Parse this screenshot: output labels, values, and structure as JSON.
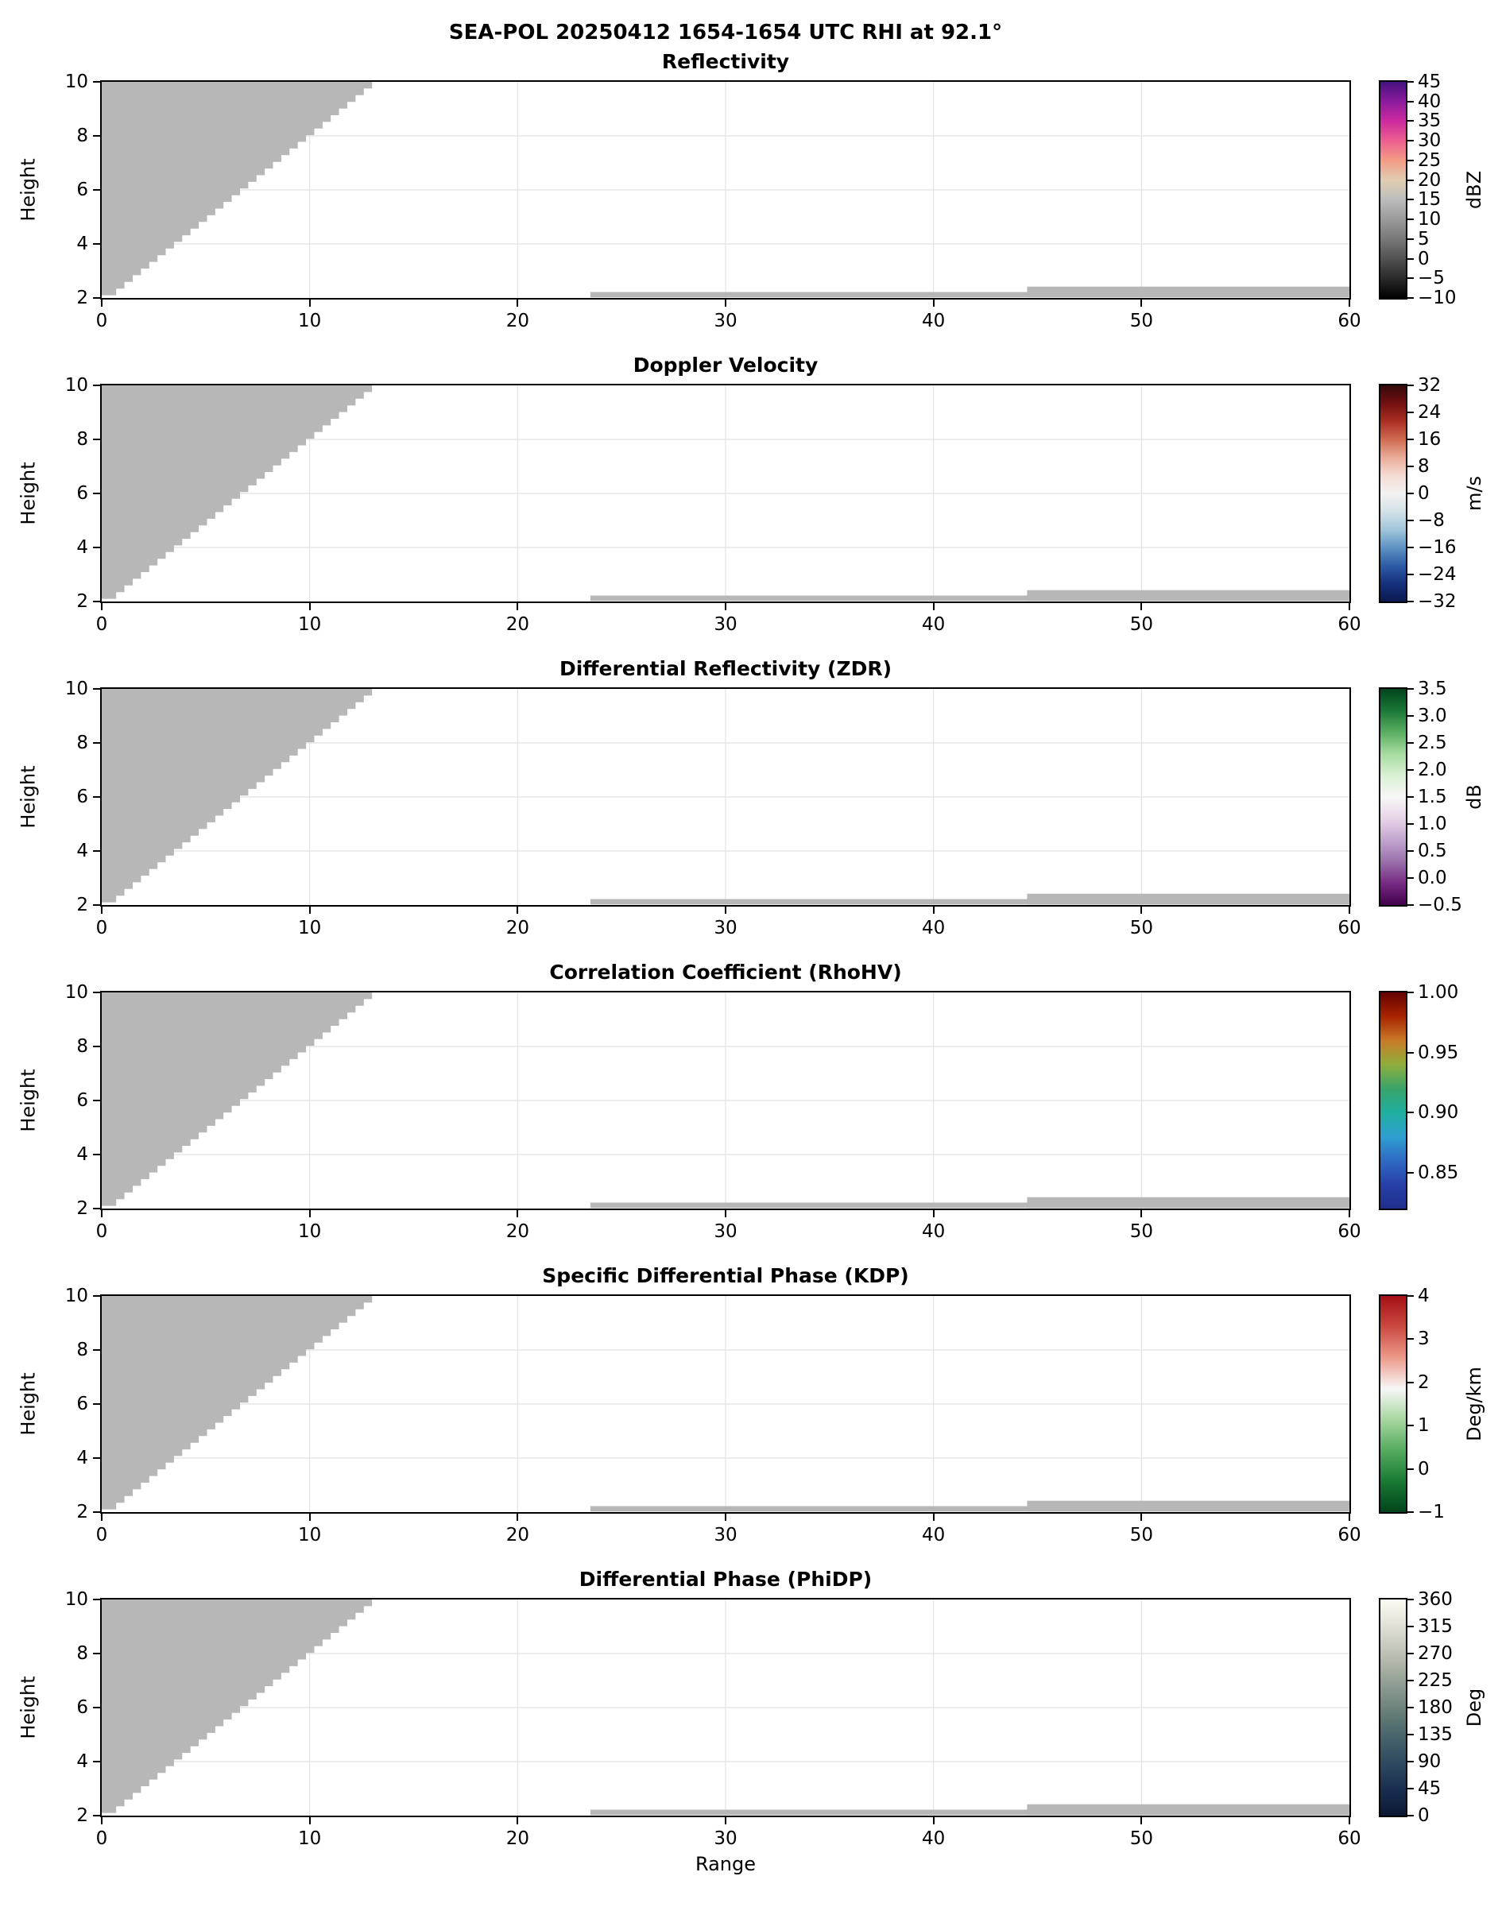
{
  "chart_data": {
    "type": "heatmap",
    "suptitle": "SEA-POL 20250412 1654-1654 UTC RHI at 92.1°",
    "xlabel": "Range",
    "ylabel": "Height",
    "xlim": [
      0,
      60
    ],
    "ylim": [
      2,
      10
    ],
    "x_ticks": [
      0,
      10,
      20,
      30,
      40,
      50,
      60
    ],
    "y_ticks": [
      2,
      4,
      6,
      8,
      10
    ],
    "grid": true,
    "echo_color": "#b7b7b7",
    "echo_region": {
      "description": "gray stepped wedge of echo/blanked data rising from near range at low height to ~13 km range at 10 km height; identical in all six panels",
      "boundary_bottom": [
        0.3,
        2.1
      ],
      "boundary_top": [
        13.0,
        10.0
      ],
      "steps": 32
    },
    "strips": [
      {
        "x0": 23.5,
        "x1": 60,
        "y0": 2.02,
        "y1": 2.22
      },
      {
        "x0": 44.5,
        "x1": 60,
        "y0": 2.02,
        "y1": 2.42
      }
    ],
    "panels": [
      {
        "title": "Reflectivity",
        "units": "dBZ",
        "vmin": -10,
        "vmax": 45,
        "colors_top_to_bottom": [
          "#45127e",
          "#8c1b9e",
          "#cc2a9e",
          "#ec5f90",
          "#f49c86",
          "#e0cdb2",
          "#bcbcbc",
          "#9a9a9a",
          "#787878",
          "#525252",
          "#2a2a2a",
          "#000000"
        ],
        "cbar_ticks": [
          {
            "v": 45,
            "label": "45"
          },
          {
            "v": 40,
            "label": "40"
          },
          {
            "v": 35,
            "label": "35"
          },
          {
            "v": 30,
            "label": "30"
          },
          {
            "v": 25,
            "label": "25"
          },
          {
            "v": 20,
            "label": "20"
          },
          {
            "v": 15,
            "label": "15"
          },
          {
            "v": 10,
            "label": "10"
          },
          {
            "v": 5,
            "label": "5"
          },
          {
            "v": 0,
            "label": "0"
          },
          {
            "v": -5,
            "label": "−5"
          },
          {
            "v": -10,
            "label": "−10"
          }
        ]
      },
      {
        "title": "Doppler Velocity",
        "units": "m/s",
        "vmin": -32,
        "vmax": 32,
        "colors_top_to_bottom": [
          "#33090b",
          "#73100f",
          "#ab2f23",
          "#d06b52",
          "#e9ab97",
          "#f5dcd3",
          "#f2f2f2",
          "#d4e1e8",
          "#a0c6da",
          "#5f93c2",
          "#2e5ca6",
          "#16307e",
          "#0b1a50"
        ],
        "cbar_ticks": [
          {
            "v": 32,
            "label": "32"
          },
          {
            "v": 24,
            "label": "24"
          },
          {
            "v": 16,
            "label": "16"
          },
          {
            "v": 8,
            "label": "8"
          },
          {
            "v": 0,
            "label": "0"
          },
          {
            "v": -8,
            "label": "−8"
          },
          {
            "v": -16,
            "label": "−16"
          },
          {
            "v": -24,
            "label": "−24"
          },
          {
            "v": -32,
            "label": "−32"
          }
        ]
      },
      {
        "title": "Differential Reflectivity (ZDR)",
        "units": "dB",
        "vmin": -0.5,
        "vmax": 3.5,
        "colors_top_to_bottom": [
          "#00441b",
          "#1b7837",
          "#5aae61",
          "#a6dba0",
          "#d9f0d3",
          "#f7f7f7",
          "#e7d4e8",
          "#c2a5cf",
          "#9970ab",
          "#762a83",
          "#40004b"
        ],
        "cbar_ticks": [
          {
            "v": 3.5,
            "label": "3.5"
          },
          {
            "v": 3.0,
            "label": "3.0"
          },
          {
            "v": 2.5,
            "label": "2.5"
          },
          {
            "v": 2.0,
            "label": "2.0"
          },
          {
            "v": 1.5,
            "label": "1.5"
          },
          {
            "v": 1.0,
            "label": "1.0"
          },
          {
            "v": 0.5,
            "label": "0.5"
          },
          {
            "v": 0.0,
            "label": "0.0"
          },
          {
            "v": -0.5,
            "label": "−0.5"
          }
        ]
      },
      {
        "title": "Correlation Coefficient (RhoHV)",
        "units": "",
        "vmin": 0.82,
        "vmax": 1.0,
        "colors_top_to_bottom": [
          "#650000",
          "#a82400",
          "#c97a28",
          "#8fae3c",
          "#3aa46a",
          "#1fae9e",
          "#2f9fd0",
          "#2f6ac4",
          "#2740a8",
          "#1f2e8c"
        ],
        "cbar_ticks": [
          {
            "v": 1.0,
            "label": "1.00"
          },
          {
            "v": 0.95,
            "label": "0.95"
          },
          {
            "v": 0.9,
            "label": "0.90"
          },
          {
            "v": 0.85,
            "label": "0.85"
          }
        ]
      },
      {
        "title": "Specific Differential Phase (KDP)",
        "units": "Deg/km",
        "vmin": -1,
        "vmax": 4,
        "colors_top_to_bottom": [
          "#a50f15",
          "#cb4a42",
          "#ec9a8a",
          "#f7f7f7",
          "#a8d6a0",
          "#55ab5f",
          "#1a7a34",
          "#00441b"
        ],
        "cbar_ticks": [
          {
            "v": 4,
            "label": "4"
          },
          {
            "v": 3,
            "label": "3"
          },
          {
            "v": 2,
            "label": "2"
          },
          {
            "v": 1,
            "label": "1"
          },
          {
            "v": 0,
            "label": "0"
          },
          {
            "v": -1,
            "label": "−1"
          }
        ]
      },
      {
        "title": "Differential Phase (PhiDP)",
        "units": "Deg",
        "vmin": 0,
        "vmax": 360,
        "colors_top_to_bottom": [
          "#fbfbf3",
          "#e3e3da",
          "#c6c8bc",
          "#a3ac9f",
          "#7f9188",
          "#5c7672",
          "#405d68",
          "#2a455e",
          "#182c4e",
          "#0c1834"
        ],
        "cbar_ticks": [
          {
            "v": 360,
            "label": "360"
          },
          {
            "v": 315,
            "label": "315"
          },
          {
            "v": 270,
            "label": "270"
          },
          {
            "v": 225,
            "label": "225"
          },
          {
            "v": 180,
            "label": "180"
          },
          {
            "v": 135,
            "label": "135"
          },
          {
            "v": 90,
            "label": "90"
          },
          {
            "v": 45,
            "label": "45"
          },
          {
            "v": 0,
            "label": "0"
          }
        ]
      }
    ]
  }
}
